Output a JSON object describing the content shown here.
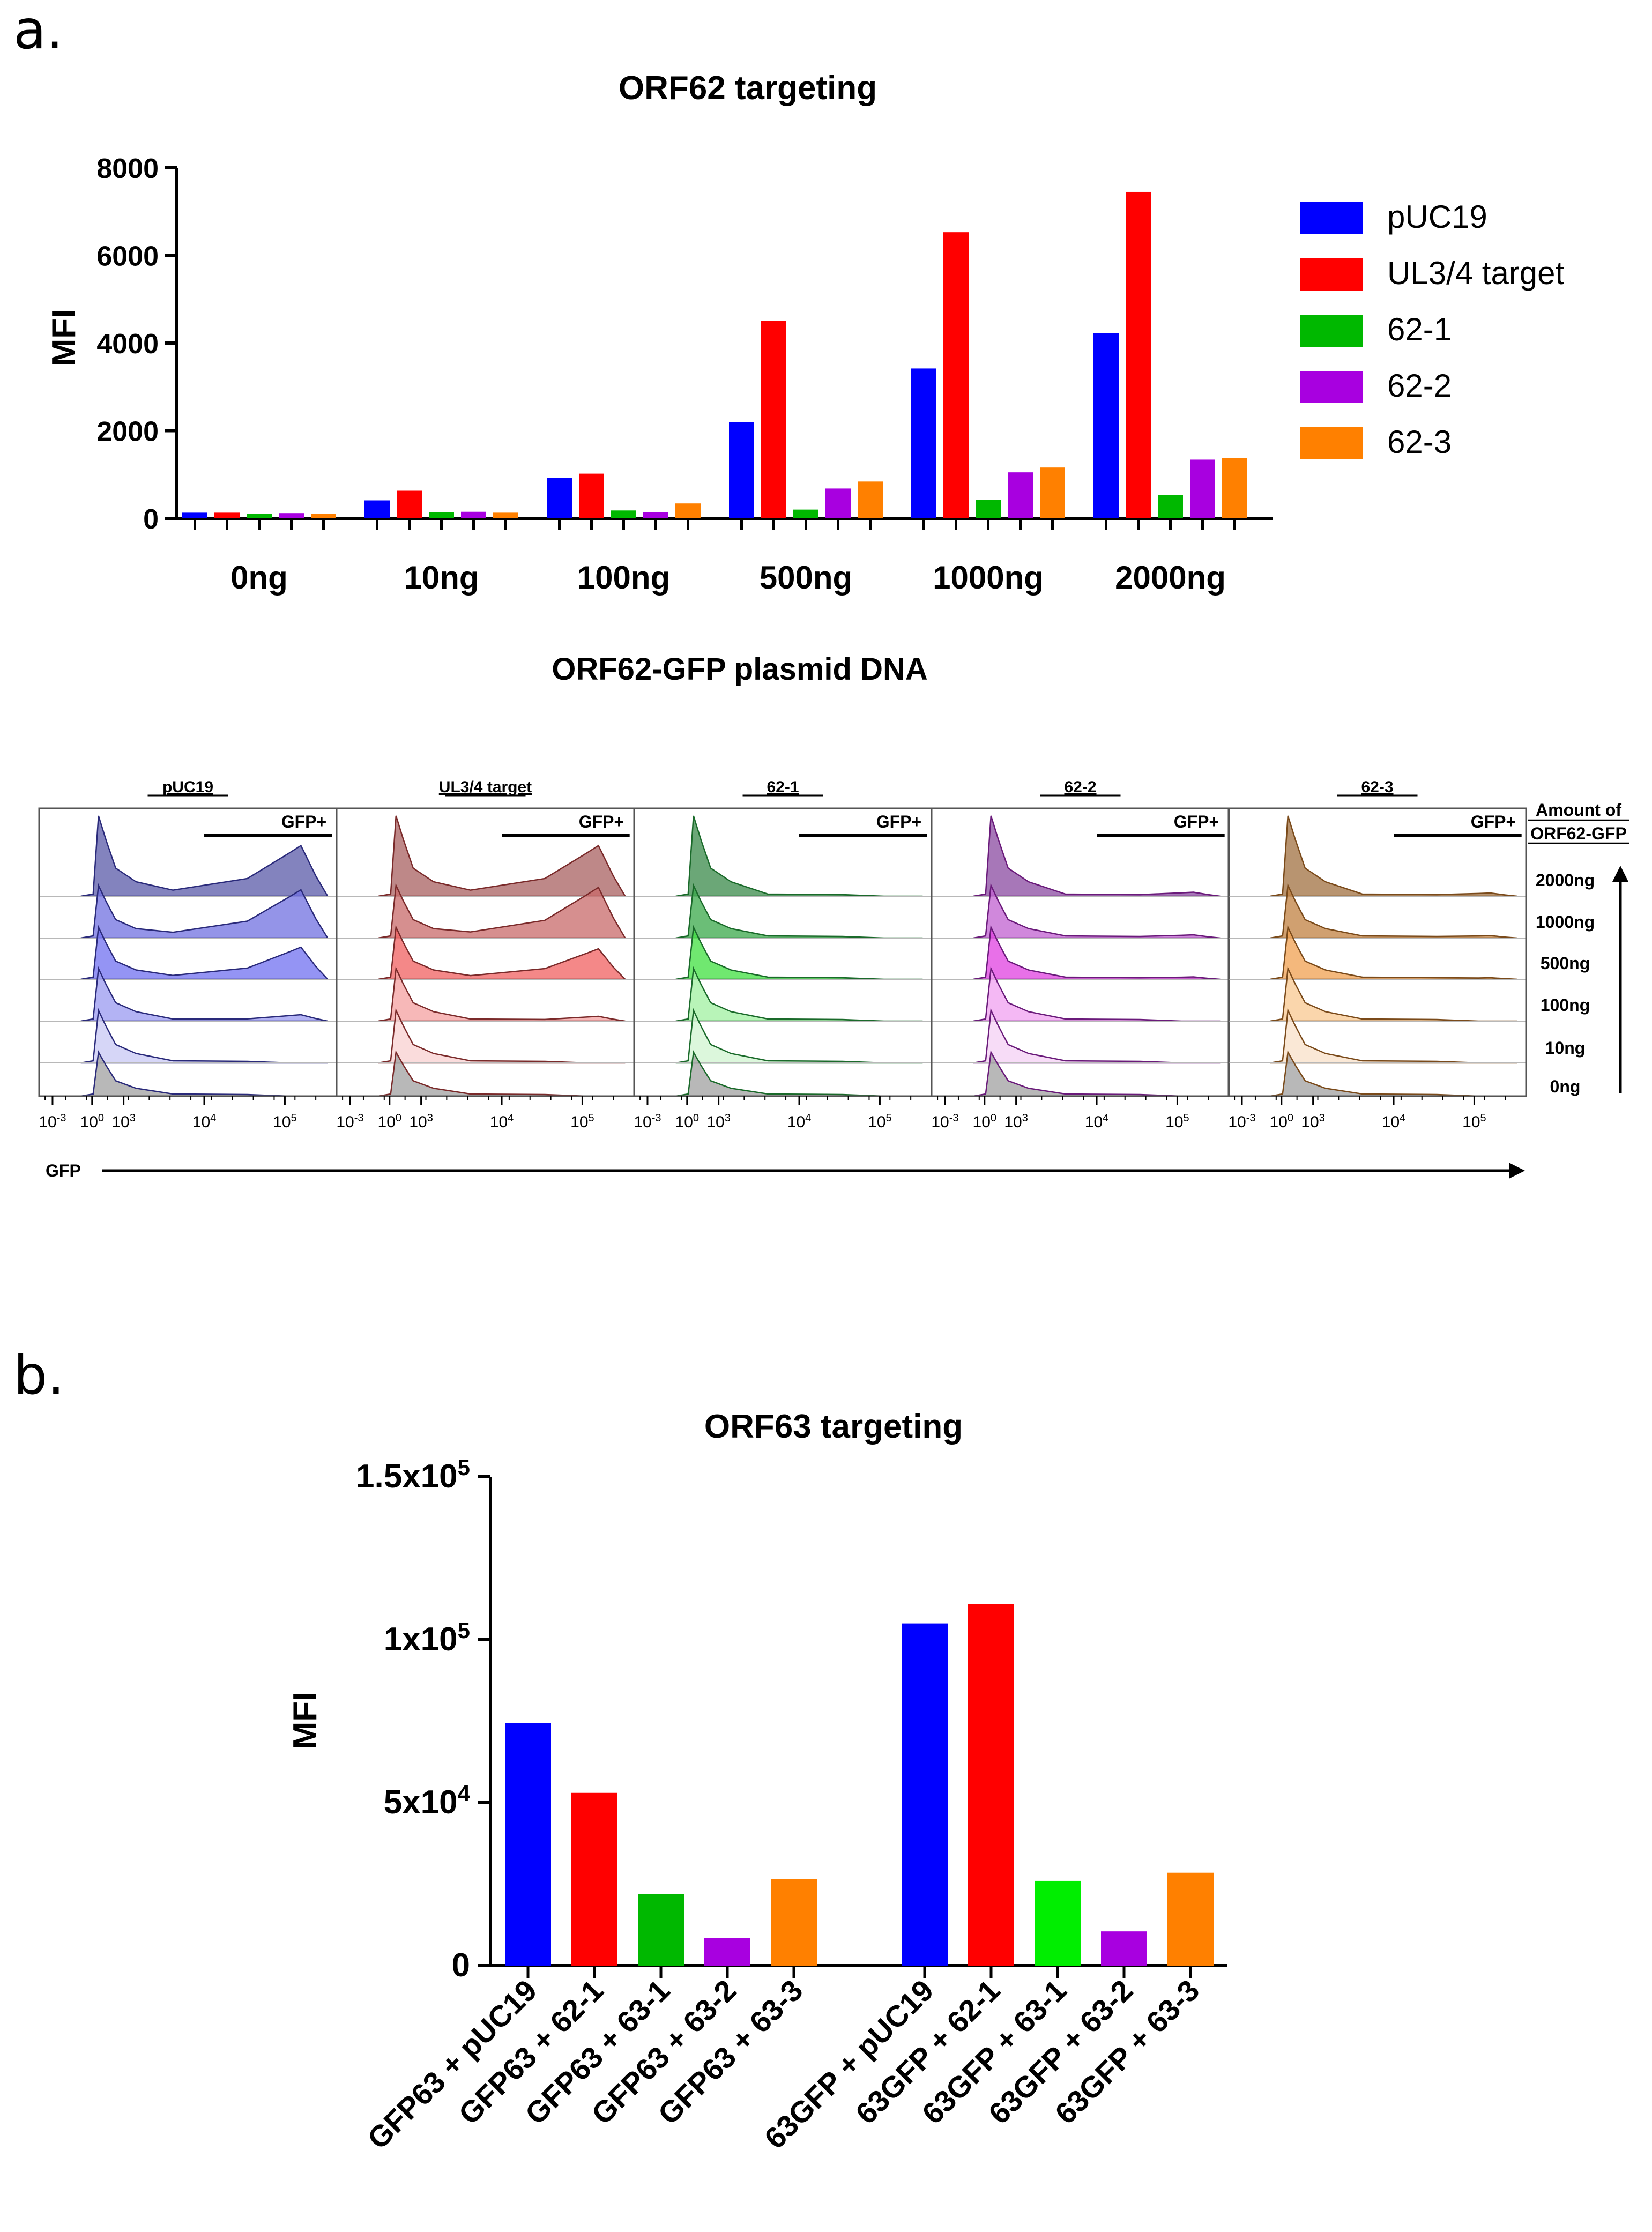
{
  "panel_labels": {
    "a": "a.",
    "b": "b."
  },
  "colors": {
    "pUC19": "#0000ff",
    "UL3/4 target": "#ff0000",
    "62-1": "#00b800",
    "62-2": "#a800e0",
    "62-3": "#ff8000",
    "63-1": "#00b800",
    "63-1-b": "#00e000",
    "axis": "#000000"
  },
  "chart_data": [
    {
      "id": "orf62-bar",
      "type": "bar",
      "title": "ORF62 targeting",
      "xlabel": "ORF62-GFP plasmid DNA",
      "ylabel": "MFI",
      "ylim": [
        0,
        8000
      ],
      "yticks": [
        0,
        2000,
        4000,
        6000,
        8000
      ],
      "categories": [
        "0ng",
        "10ng",
        "100ng",
        "500ng",
        "1000ng",
        "2000ng"
      ],
      "series": [
        {
          "name": "pUC19",
          "values": [
            130,
            410,
            920,
            2200,
            3420,
            4230
          ]
        },
        {
          "name": "UL3/4 target",
          "values": [
            130,
            630,
            1020,
            4510,
            6530,
            7450
          ]
        },
        {
          "name": "62-1",
          "values": [
            110,
            140,
            180,
            200,
            420,
            530
          ]
        },
        {
          "name": "62-2",
          "values": [
            120,
            150,
            140,
            680,
            1050,
            1340
          ]
        },
        {
          "name": "62-3",
          "values": [
            110,
            130,
            340,
            840,
            1160,
            1380
          ]
        }
      ],
      "legend_position": "right"
    },
    {
      "id": "orf62-histograms",
      "type": "area",
      "xlabel": "GFP",
      "panels": [
        "pUC19",
        "UL3/4 target",
        "62-1",
        "62-2",
        "62-3"
      ],
      "gate_label": "GFP+",
      "right_title": [
        "Amount of",
        "ORF62-GFP"
      ],
      "rows": [
        "2000ng",
        "1000ng",
        "500ng",
        "100ng",
        "10ng",
        "0ng"
      ],
      "x_tick_labels": [
        {
          "base": "10",
          "exp": "-3"
        },
        {
          "base": "10",
          "exp": "0"
        },
        {
          "base": "10",
          "exp": "3"
        },
        {
          "base": "10",
          "exp": "4"
        },
        {
          "base": "10",
          "exp": "5"
        }
      ],
      "panel_colors": [
        "#2a2a7a",
        "#7a2a2a",
        "#1a6a2a",
        "#6a1a7a",
        "#7a4a1a"
      ],
      "row_colors": [
        [
          "#5a5aa8",
          "#7070e0",
          "#7070f0",
          "#9a9af0",
          "#c8c8f4",
          "#a0a0a0"
        ],
        [
          "#a86060",
          "#c86a6a",
          "#f06060",
          "#f4a0a0",
          "#f8d0d0",
          "#a0a0a0"
        ],
        [
          "#3a8a4a",
          "#3aa84a",
          "#40e040",
          "#a0f0a0",
          "#d0f4d0",
          "#a0a0a0"
        ],
        [
          "#8a4aa0",
          "#c060d0",
          "#e040e0",
          "#f0a0f0",
          "#f4d0f4",
          "#a0a0a0"
        ],
        [
          "#a07040",
          "#c08040",
          "#f0a050",
          "#f8c890",
          "#f8e0c8",
          "#a0a0a0"
        ]
      ],
      "high_peak_heights": [
        [
          0.63,
          0.6,
          0.4,
          0.08,
          0.0,
          0.0
        ],
        [
          0.63,
          0.63,
          0.38,
          0.06,
          0.0,
          0.0
        ],
        [
          0.0,
          0.0,
          0.0,
          0.0,
          0.0,
          0.0
        ],
        [
          0.05,
          0.04,
          0.03,
          0.0,
          0.0,
          0.0
        ],
        [
          0.04,
          0.03,
          0.02,
          0.0,
          0.0,
          0.0
        ]
      ]
    },
    {
      "id": "orf63-bar",
      "type": "bar",
      "title": "ORF63 targeting",
      "ylabel": "MFI",
      "ylim": [
        0,
        150000
      ],
      "yticks": [
        {
          "value": 0,
          "label": "0"
        },
        {
          "value": 50000,
          "label": "5x10",
          "exp": "4"
        },
        {
          "value": 100000,
          "label": "1x10",
          "exp": "5"
        },
        {
          "value": 150000,
          "label": "1.5x10",
          "exp": "5"
        }
      ],
      "categories": [
        "GFP63 + pUC19",
        "GFP63 + 62-1",
        "GFP63 + 63-1",
        "GFP63 + 63-2",
        "GFP63 + 63-3",
        "63GFP + pUC19",
        "63GFP + 62-1",
        "63GFP + 63-1",
        "63GFP + 63-2",
        "63GFP + 63-3"
      ],
      "values": [
        74500,
        53000,
        22000,
        8500,
        26500,
        105000,
        111000,
        26000,
        10500,
        28500
      ],
      "bar_colors": [
        "#0000ff",
        "#ff0000",
        "#00b800",
        "#a800e0",
        "#ff8000",
        "#0000ff",
        "#ff0000",
        "#00ee00",
        "#a800e0",
        "#ff8000"
      ]
    }
  ]
}
